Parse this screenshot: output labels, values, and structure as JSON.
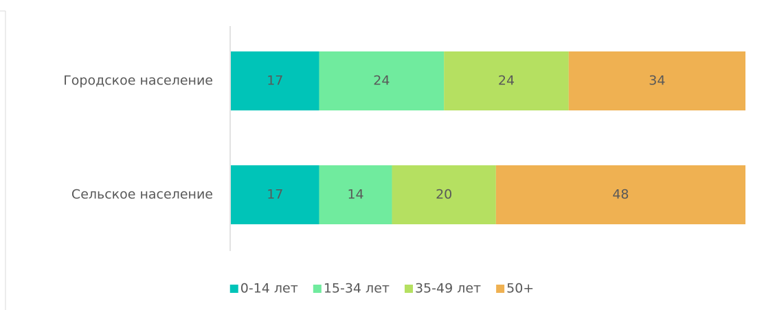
{
  "chart_data": {
    "type": "bar",
    "orientation": "horizontal",
    "stacked": "percent",
    "categories": [
      "Городское население",
      "Сельское население"
    ],
    "series": [
      {
        "name": "0-14 лет",
        "color": "#00c4b8",
        "values": [
          17,
          17
        ]
      },
      {
        "name": "15-34 лет",
        "color": "#70eb9e",
        "values": [
          24,
          14
        ]
      },
      {
        "name": "35-49 лет",
        "color": "#b5e061",
        "values": [
          24,
          20
        ]
      },
      {
        "name": "50+",
        "color": "#efb152",
        "values": [
          34,
          48
        ]
      }
    ],
    "legend": "bottom"
  }
}
